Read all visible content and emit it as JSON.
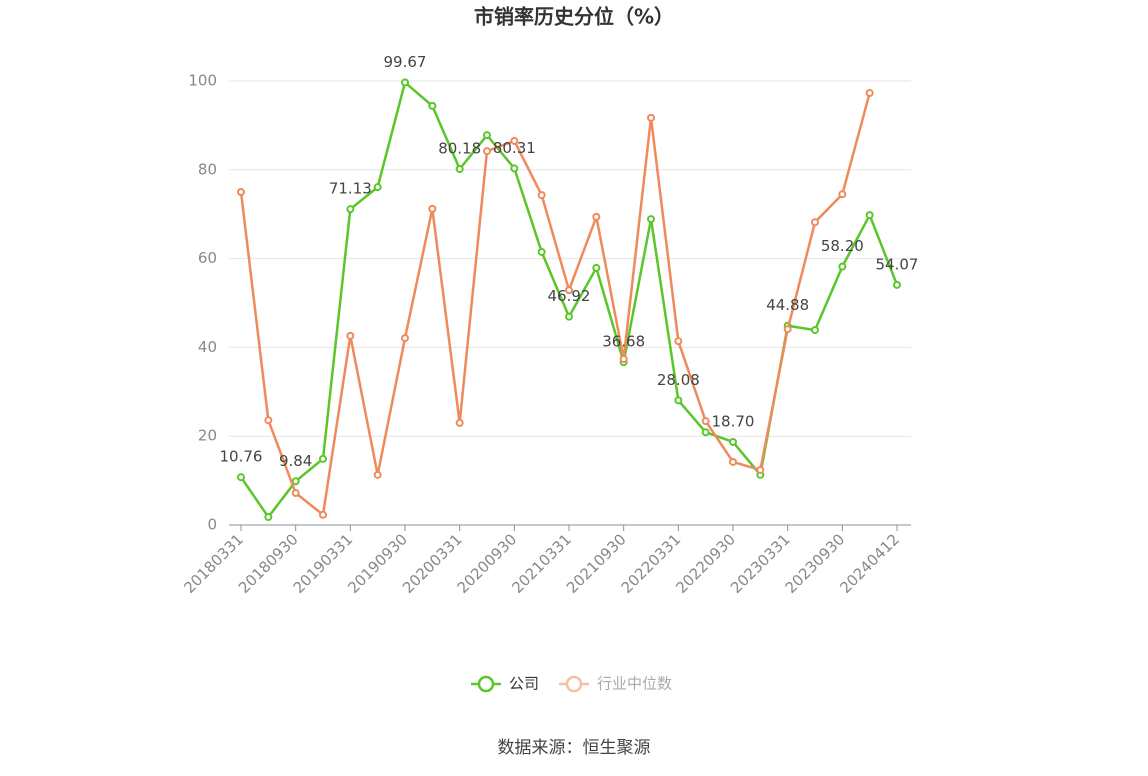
{
  "chart_data": {
    "type": "line",
    "title": "市销率历史分位（%）",
    "categories": [
      "20180331",
      null,
      "20180930",
      null,
      "20190331",
      null,
      "20190930",
      null,
      "20200331",
      null,
      "20200930",
      null,
      "20210331",
      null,
      "20210930",
      null,
      "20220331",
      null,
      "20220930",
      null,
      "20230331",
      null,
      "20230930",
      null,
      "20240412"
    ],
    "series": [
      {
        "name": "公司",
        "color": "#5ac62a",
        "values": [
          10.76,
          1.8,
          9.84,
          14.9,
          71.13,
          76.1,
          99.67,
          94.4,
          80.18,
          87.8,
          80.31,
          61.5,
          46.92,
          57.9,
          36.68,
          68.9,
          28.08,
          20.9,
          18.7,
          11.3,
          44.88,
          43.9,
          58.2,
          69.8,
          54.07
        ],
        "value_labels": [
          "10.76",
          null,
          "9.84",
          null,
          "71.13",
          null,
          "99.67",
          null,
          "80.18",
          null,
          "80.31",
          null,
          "46.92",
          null,
          "36.68",
          null,
          "28.08",
          null,
          "18.70",
          null,
          "44.88",
          null,
          "58.20",
          null,
          "54.07"
        ]
      },
      {
        "name": "行业中位数",
        "color": "#ef8a5c",
        "values": [
          75.0,
          23.6,
          7.2,
          2.3,
          42.6,
          11.3,
          42.1,
          71.2,
          23.0,
          84.2,
          86.5,
          74.3,
          52.9,
          69.4,
          37.4,
          91.7,
          41.4,
          23.4,
          14.2,
          12.4,
          44.1,
          68.2,
          74.5,
          97.3,
          null
        ]
      }
    ],
    "ylim": [
      0,
      100
    ],
    "yticks": [
      0,
      20,
      40,
      60,
      80,
      100
    ],
    "grid": true,
    "source": "数据来源：恒生聚源"
  }
}
